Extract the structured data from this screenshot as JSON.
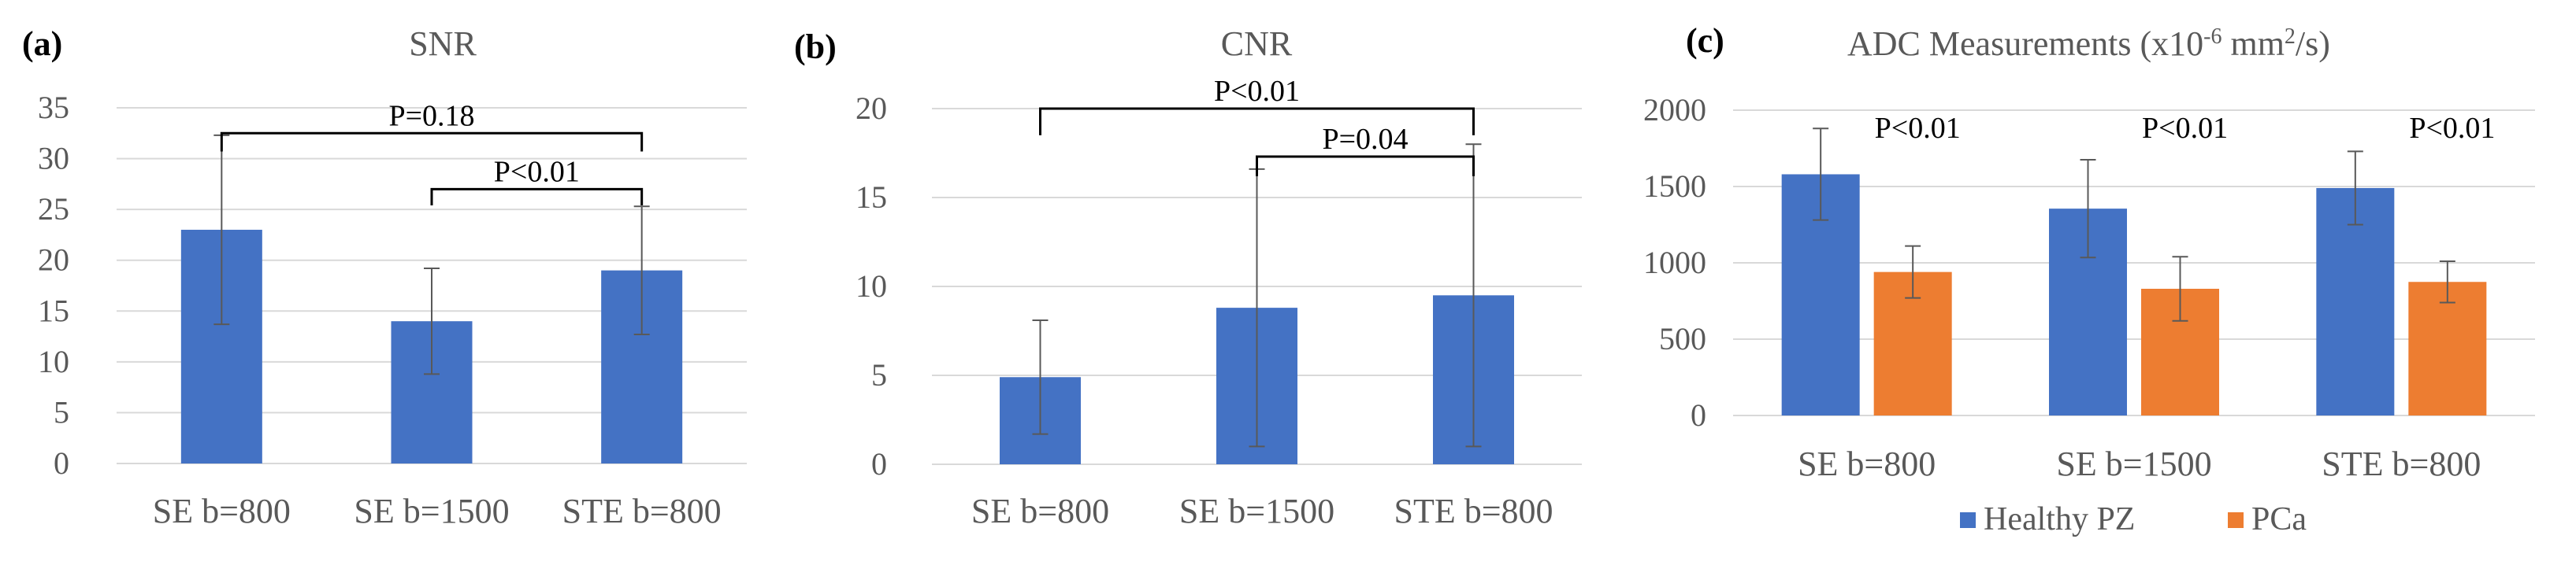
{
  "chart_data": [
    {
      "panel_label": "(a)",
      "type": "bar",
      "title": "SNR",
      "categories": [
        "SE b=800",
        "SE b=1500",
        "STE b=800"
      ],
      "series": [
        {
          "name": "SNR",
          "color": "#4472c4",
          "values": [
            23,
            14,
            19
          ],
          "errors": [
            9.3,
            5.2,
            6.3
          ]
        }
      ],
      "ylim": [
        0,
        35
      ],
      "yticks": [
        0,
        5,
        10,
        15,
        20,
        25,
        30,
        35
      ],
      "grid": true,
      "annotations": [
        {
          "text": "P=0.18",
          "from": 0,
          "to": 2,
          "level": 32.5,
          "drop": 1.8
        },
        {
          "text": "P<0.01",
          "from": 1,
          "to": 2,
          "level": 27,
          "drop": 1.6
        }
      ]
    },
    {
      "panel_label": "(b)",
      "type": "bar",
      "title": "CNR",
      "categories": [
        "SE b=800",
        "SE b=1500",
        "STE b=800"
      ],
      "series": [
        {
          "name": "CNR",
          "color": "#4472c4",
          "values": [
            4.9,
            8.8,
            9.5
          ],
          "errors": [
            3.2,
            7.8,
            8.5
          ]
        }
      ],
      "ylim": [
        0,
        20
      ],
      "yticks": [
        0,
        5,
        10,
        15,
        20
      ],
      "grid": true,
      "annotations": [
        {
          "text": "P<0.01",
          "from": 0,
          "to": 2,
          "level": 20,
          "drop": 1.5
        },
        {
          "text": "P=0.04",
          "from": 1,
          "to": 2,
          "level": 17.3,
          "drop": 1.1
        }
      ]
    },
    {
      "panel_label": "(c)",
      "type": "bar",
      "title": "ADC Measurements (x10",
      "title_superscript": "-6",
      "title_unit": " mm",
      "title_unit_superscript": "2",
      "title_tail": "/s)",
      "categories": [
        "SE b=800",
        "SE b=1500",
        "STE b=800"
      ],
      "series": [
        {
          "name": "Healthy PZ",
          "color": "#4472c4",
          "values": [
            1580,
            1355,
            1490
          ],
          "errors": [
            300,
            320,
            240
          ]
        },
        {
          "name": "PCa",
          "color": "#ed7d31",
          "values": [
            940,
            830,
            875
          ],
          "errors": [
            170,
            210,
            135
          ]
        }
      ],
      "ylim": [
        0,
        2000
      ],
      "yticks": [
        0,
        500,
        1000,
        1500,
        2000
      ],
      "grid": true,
      "legend": "bottom",
      "group_annotations": [
        "P<0.01",
        "P<0.01",
        "P<0.01"
      ]
    }
  ]
}
